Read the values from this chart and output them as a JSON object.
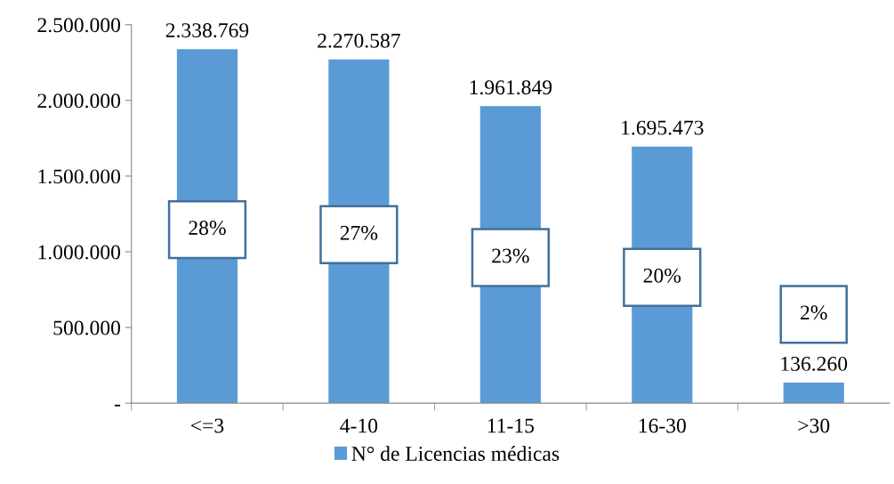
{
  "chart_data": {
    "type": "bar",
    "categories": [
      "<=3",
      "4-10",
      "11-15",
      "16-30",
      ">30"
    ],
    "series": [
      {
        "name": "N° de Licencias médicas",
        "color": "#5b9bd5",
        "values": [
          2338769,
          2270587,
          1961849,
          1695473,
          136260
        ]
      }
    ],
    "value_labels": [
      "2.338.769",
      "2.270.587",
      "1.961.849",
      "1.695.473",
      "136.260"
    ],
    "ylim": [
      0,
      2500000
    ],
    "yticks": [
      {
        "value": 0,
        "label": "-"
      },
      {
        "value": 500000,
        "label": "500.000"
      },
      {
        "value": 1000000,
        "label": "1.000.000"
      },
      {
        "value": 1500000,
        "label": "1.500.000"
      },
      {
        "value": 2000000,
        "label": "2.000.000"
      },
      {
        "value": 2500000,
        "label": "2.500.000"
      }
    ],
    "annotations": [
      "28%",
      "27%",
      "23%",
      "20%",
      "2%"
    ],
    "grid": false,
    "legend": "bottom"
  }
}
